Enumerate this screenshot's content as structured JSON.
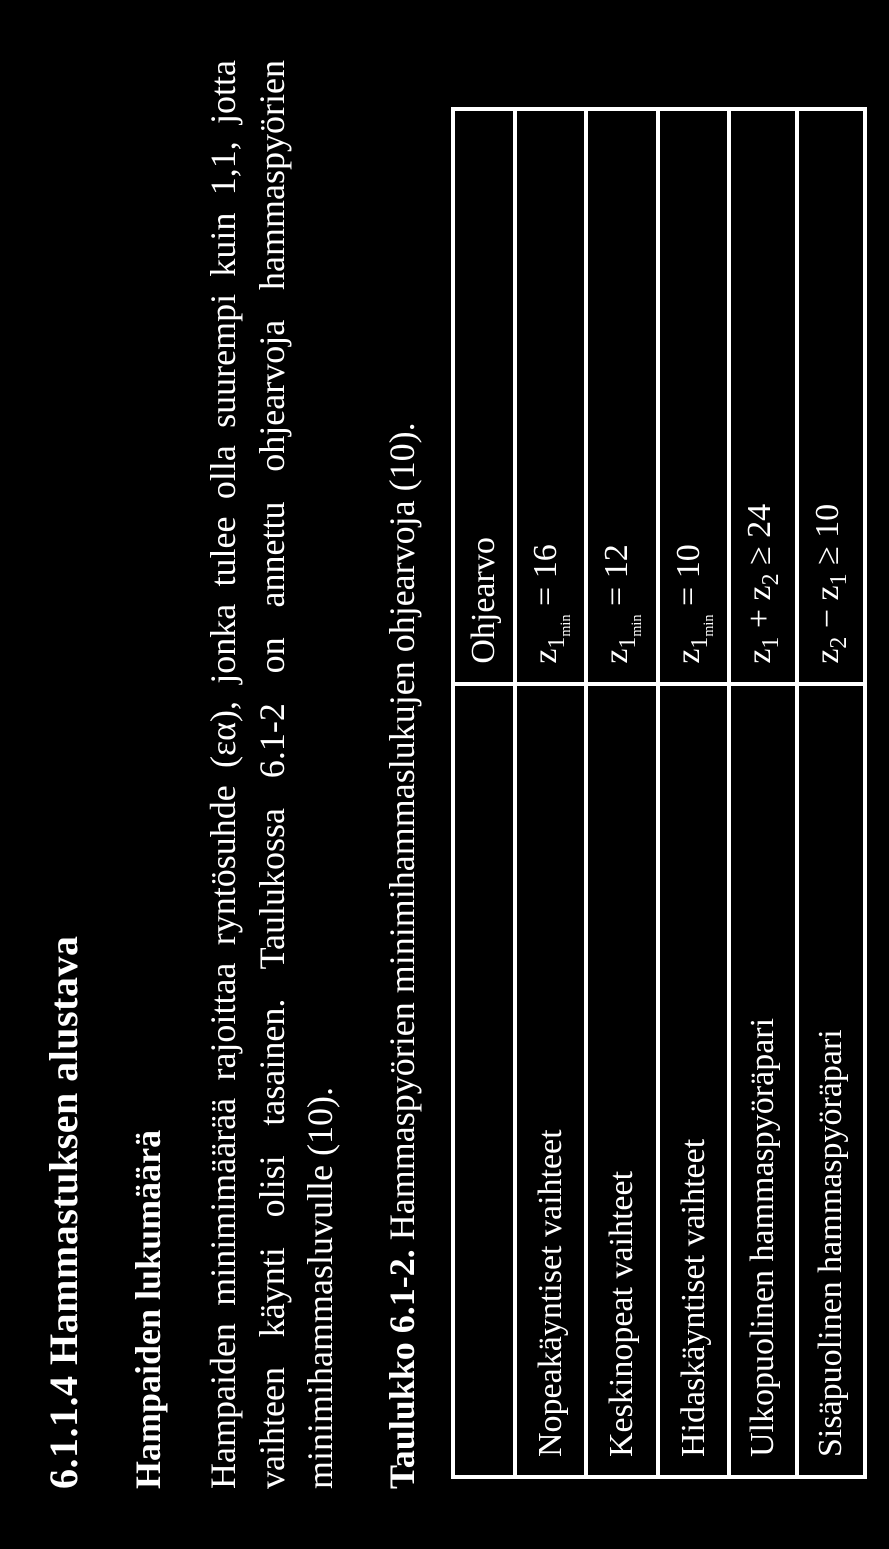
{
  "heading": "6.1.1.4 Hammastuksen alustava",
  "subheading": "Hampaiden lukumäärä",
  "paragraph": "Hampaiden minimimäärää rajoittaa ryntösuhde (εα), jonka tulee olla suurempi kuin 1,1, jotta vaihteen käynti olisi tasainen. Taulukossa 6.1-2 on annettu ohjearvoja hammaspyörien minimihammasluvulle (10).",
  "caption_label": "Taulukko 6.1-2.",
  "caption_text": " Hammaspyörien minimihammaslukujen ohjearvoja (10).",
  "table": {
    "header_desc": "",
    "header_val": "Ohjearvo",
    "rows": [
      {
        "desc": "Nopeakäyntiset vaihteet",
        "val_html": "z<span class=\"sub\">1<span class=\"subsub\">min</span></span> = 16"
      },
      {
        "desc": "Keskinopeat vaihteet",
        "val_html": "z<span class=\"sub\">1<span class=\"subsub\">min</span></span> = 12"
      },
      {
        "desc": "Hidaskäyntiset vaihteet",
        "val_html": "z<span class=\"sub\">1<span class=\"subsub\">min</span></span> = 10"
      },
      {
        "desc": "Ulkopuolinen hammaspyöräpari",
        "val_html": "z<span class=\"sub\">1</span> + z<span class=\"sub\">2</span> ≥ 24"
      },
      {
        "desc": "Sisäpuolinen hammaspyöräpari",
        "val_html": "z<span class=\"sub\">2</span> − z<span class=\"sub\">1</span> ≥ 10"
      }
    ]
  },
  "colors": {
    "bg": "#000000",
    "fg": "#ffffff",
    "border": "#ffffff"
  }
}
